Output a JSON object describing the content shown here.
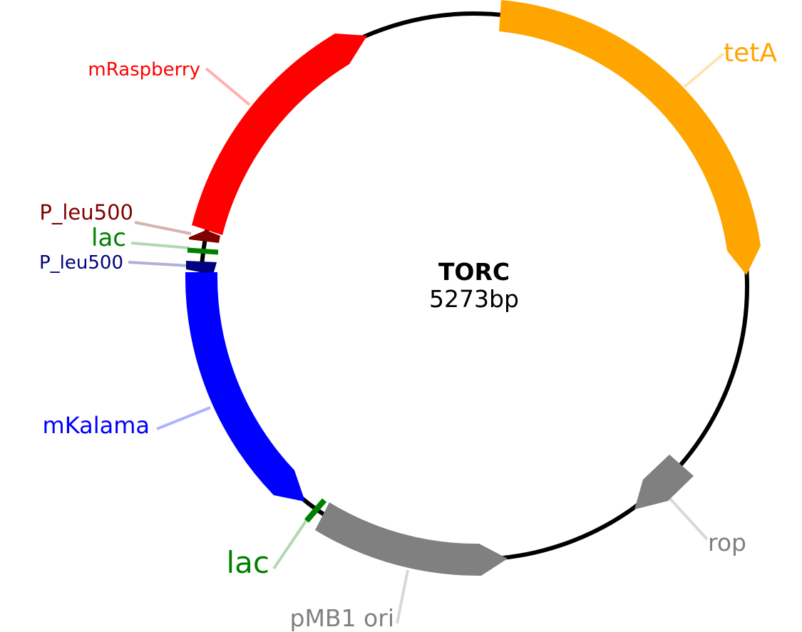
{
  "plasmid": {
    "name": "TORC",
    "size_label": "5273bp"
  },
  "features": [
    {
      "id": "tetA",
      "label": "tetA",
      "color": "#FFA500",
      "type": "gene"
    },
    {
      "id": "rop",
      "label": "rop",
      "color": "#808080",
      "type": "gene"
    },
    {
      "id": "pmb1-ori",
      "label": "pMB1 ori",
      "color": "#808080",
      "type": "origin"
    },
    {
      "id": "lac-bottom",
      "label": "lac",
      "color": "#008000",
      "type": "operator"
    },
    {
      "id": "mkalama",
      "label": "mKalama",
      "color": "#0000FF",
      "type": "gene"
    },
    {
      "id": "p-leu500-blue",
      "label": "P_leu500",
      "color": "#000080",
      "type": "promoter"
    },
    {
      "id": "lac-top",
      "label": "lac",
      "color": "#008000",
      "type": "operator"
    },
    {
      "id": "p-leu500-red",
      "label": "P_leu500",
      "color": "#800000",
      "type": "promoter"
    },
    {
      "id": "mraspberry",
      "label": "mRaspberry",
      "color": "#FF0000",
      "type": "gene"
    }
  ]
}
